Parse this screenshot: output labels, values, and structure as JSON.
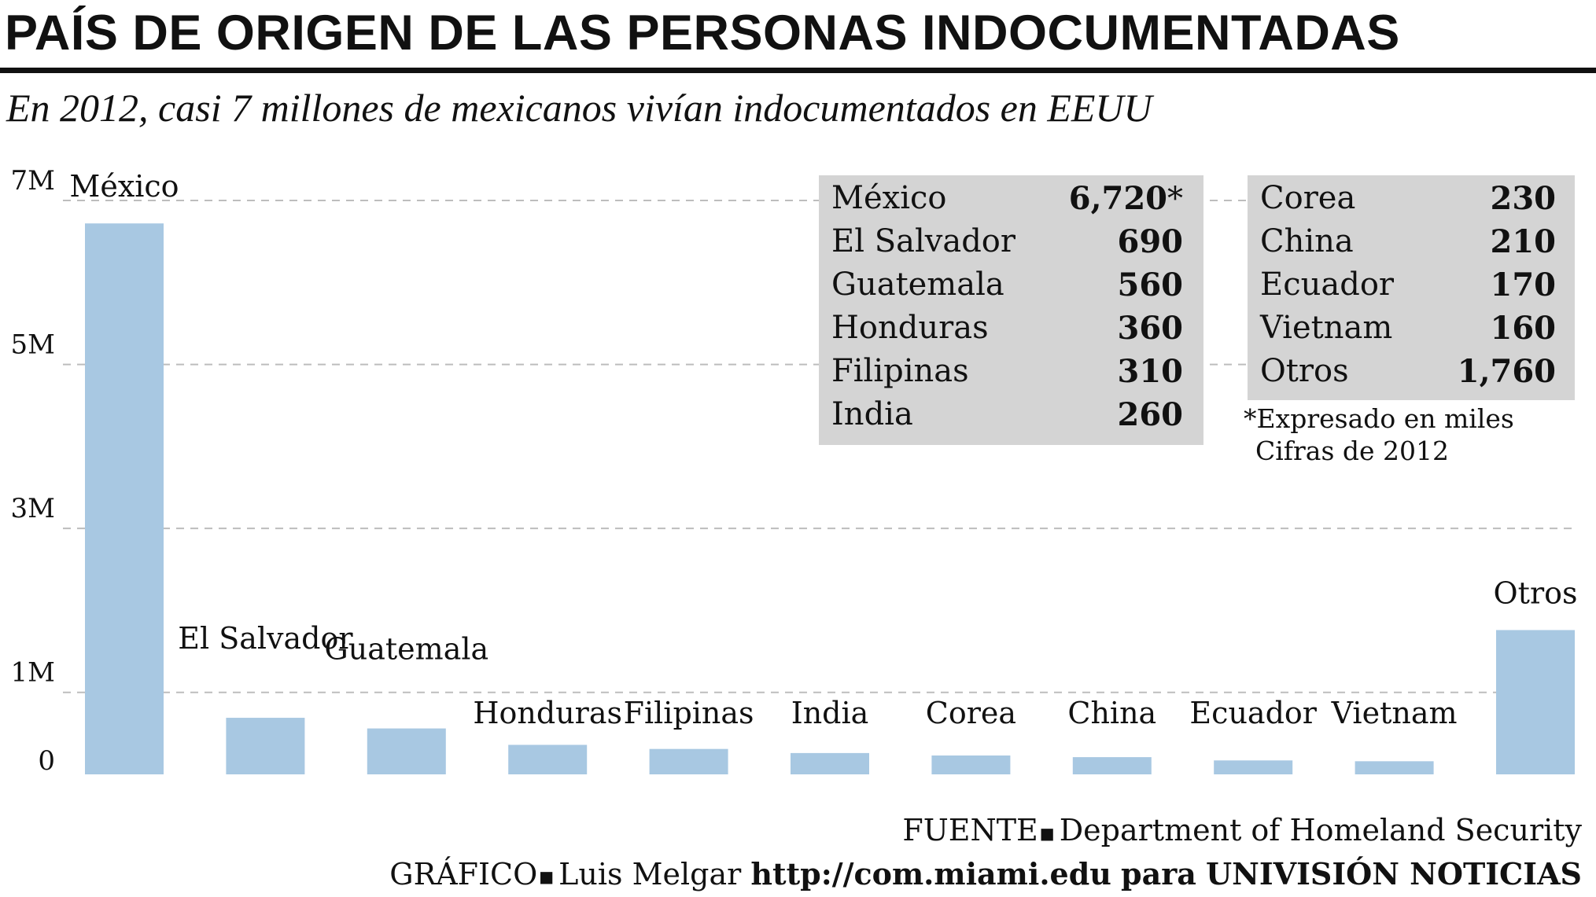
{
  "title": "PAÍS DE ORIGEN DE LAS PERSONAS INDOCUMENTADAS",
  "subtitle": "En 2012, casi 7 millones de mexicanos vivían indocumentados en EEUU",
  "chart_data": {
    "type": "bar",
    "categories": [
      "México",
      "El Salvador",
      "Guatemala",
      "Honduras",
      "Filipinas",
      "India",
      "Corea",
      "China",
      "Ecuador",
      "Vietnam",
      "Otros"
    ],
    "values": [
      6720,
      690,
      560,
      360,
      310,
      260,
      230,
      210,
      170,
      160,
      1760
    ],
    "unit": "miles",
    "ylim": [
      0,
      7000
    ],
    "yticks": [
      {
        "value": 0,
        "label": "0"
      },
      {
        "value": 1000,
        "label": "1M"
      },
      {
        "value": 3000,
        "label": "3M"
      },
      {
        "value": 5000,
        "label": "5M"
      },
      {
        "value": 7000,
        "label": "7M"
      }
    ],
    "grid": true,
    "bar_color": "#a8c8e2"
  },
  "table": {
    "left": [
      {
        "name": "México",
        "value": "6,720",
        "mark": "*"
      },
      {
        "name": "El Salvador",
        "value": "690",
        "mark": ""
      },
      {
        "name": "Guatemala",
        "value": "560",
        "mark": ""
      },
      {
        "name": "Honduras",
        "value": "360",
        "mark": ""
      },
      {
        "name": "Filipinas",
        "value": "310",
        "mark": ""
      },
      {
        "name": "India",
        "value": "260",
        "mark": ""
      }
    ],
    "right": [
      {
        "name": "Corea",
        "value": "230"
      },
      {
        "name": "China",
        "value": "210"
      },
      {
        "name": "Ecuador",
        "value": "170"
      },
      {
        "name": "Vietnam",
        "value": "160"
      },
      {
        "name": "Otros",
        "value": "1,760"
      }
    ],
    "note1": "*Expresado en miles",
    "note2": "Cifras de 2012"
  },
  "source": {
    "label": "FUENTE",
    "text": "Department of Homeland Security"
  },
  "credit": {
    "label": "GRÁFICO",
    "author": "Luis Melgar",
    "url": "http://com.miami.edu",
    "connector": "para",
    "outlet": "UNIVISIÓN NOTICIAS"
  }
}
